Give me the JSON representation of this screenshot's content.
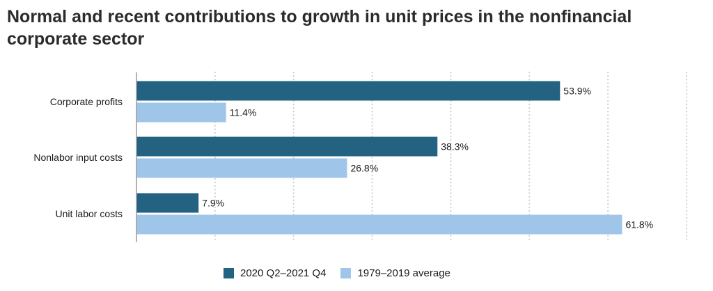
{
  "chart_data": {
    "type": "bar",
    "orientation": "horizontal",
    "title": "Normal and recent contributions to growth in unit prices in the nonfinancial corporate sector",
    "categories": [
      "Corporate profits",
      "Nonlabor input costs",
      "Unit labor costs"
    ],
    "series": [
      {
        "name": "2020 Q2–2021 Q4",
        "values": [
          53.9,
          38.3,
          7.9
        ],
        "labels": [
          "53.9%",
          "38.3%",
          "7.9%"
        ],
        "color": "#246282"
      },
      {
        "name": "1979–2019 average",
        "values": [
          11.4,
          26.8,
          61.8
        ],
        "labels": [
          "11.4%",
          "26.8%",
          "61.8%"
        ],
        "color": "#9fc6e8"
      }
    ],
    "xlim": [
      0,
      70
    ],
    "grid": true,
    "legend": "bottom"
  },
  "colors": {
    "title": "#2b2b2b",
    "axis": "#9a9a9a",
    "grid": "#cfcfcf",
    "text": "#1a1a1a"
  }
}
